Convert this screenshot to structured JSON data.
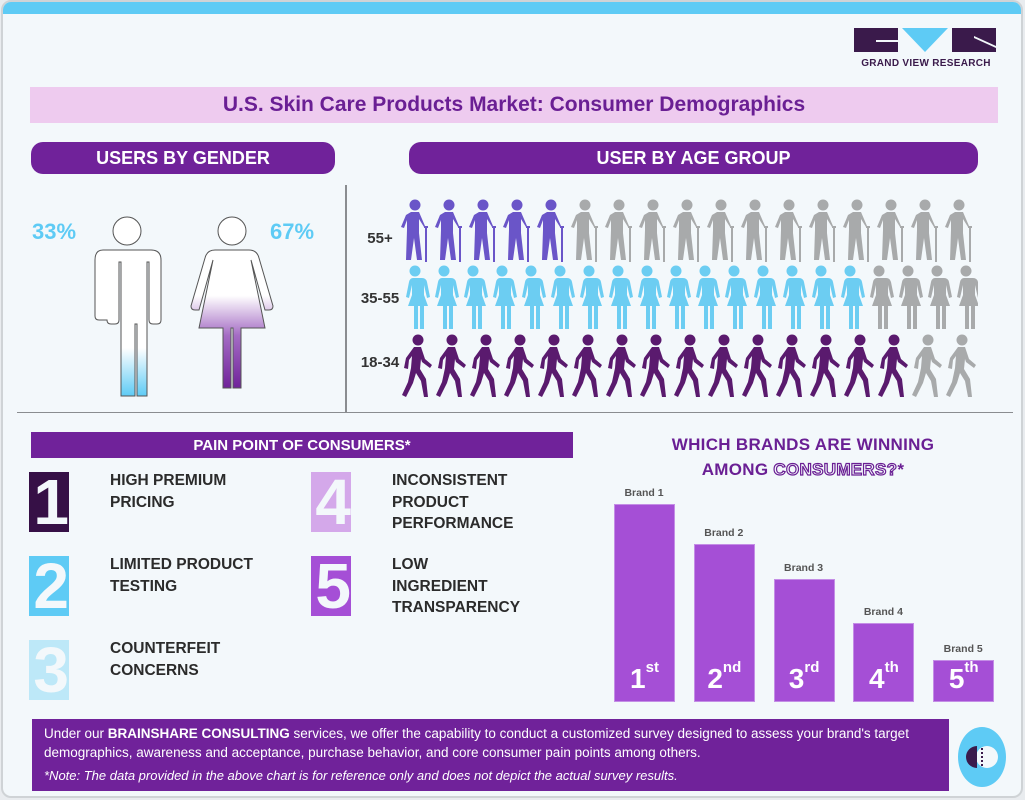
{
  "brand": {
    "logo_text": "GRAND VIEW RESEARCH",
    "colors": {
      "primary": "#70229a",
      "accent": "#5ecbf5",
      "dark": "#3a1a4b"
    }
  },
  "title": "U.S. Skin Care Products Market: Consumer Demographics",
  "gender": {
    "header": "USERS BY GENDER",
    "male_pct": "33%",
    "female_pct": "67%",
    "male_fill": 0.33,
    "female_fill": 0.67,
    "male_color": "#5ecbf5",
    "female_color": "#70229a"
  },
  "age": {
    "header": "USER BY AGE GROUP",
    "rows": [
      {
        "label": "55+",
        "icon": "elderly-person-with-cane-icon",
        "highlighted": 5,
        "total": 17,
        "color": "#6a55c8"
      },
      {
        "label": "35-55",
        "icon": "man-woman-pair-icon",
        "highlighted": 16,
        "total": 20,
        "color": "#6ccdf2"
      },
      {
        "label": "18-34",
        "icon": "walking-person-icon",
        "highlighted": 15,
        "total": 17,
        "color": "#5a1a6e"
      }
    ],
    "inactive_color": "#a8aaab"
  },
  "pain_points": {
    "header": "PAIN POINT OF CONSUMERS*",
    "items": [
      {
        "number": "1",
        "lines": [
          "HIGH PREMIUM",
          "PRICING"
        ],
        "color": "#361046"
      },
      {
        "number": "2",
        "lines": [
          "LIMITED PRODUCT",
          "TESTING"
        ],
        "color": "#5ecbf5"
      },
      {
        "number": "3",
        "lines": [
          "COUNTERFEIT",
          "CONCERNS"
        ],
        "color": "#bde8f8"
      },
      {
        "number": "4",
        "lines": [
          "INCONSISTENT",
          "PRODUCT",
          "PERFORMANCE"
        ],
        "color": "#d4a8ea"
      },
      {
        "number": "5",
        "lines": [
          "LOW",
          "INGREDIENT",
          "TRANSPARENCY"
        ],
        "color": "#a54fd6"
      }
    ]
  },
  "brands": {
    "title_line1": "WHICH BRANDS ARE WINNING",
    "title_line2_plain": "AMONG ",
    "title_line2_outline": "CONSUMERS?",
    "title_line2_end": "*"
  },
  "chart_data": {
    "type": "bar",
    "title": "WHICH BRANDS ARE WINNING AMONG CONSUMERS?*",
    "categories": [
      "Brand 1",
      "Brand 2",
      "Brand 3",
      "Brand 4",
      "Brand 5"
    ],
    "ranks": [
      {
        "num": "1",
        "suffix": "st"
      },
      {
        "num": "2",
        "suffix": "nd"
      },
      {
        "num": "3",
        "suffix": "rd"
      },
      {
        "num": "4",
        "suffix": "th"
      },
      {
        "num": "5",
        "suffix": "th"
      }
    ],
    "values": [
      100,
      80,
      62,
      40,
      21
    ],
    "color": "#a54fd6",
    "grid": false
  },
  "footer": {
    "pre": "Under our ",
    "bold": "BRAINSHARE CONSULTING",
    "post": " services, we offer the capability to conduct a customized survey designed to assess your brand's target demographics, awareness and acceptance, purchase behavior, and core consumer pain points among others.",
    "note": "*Note: The data provided in the above chart is for reference only and does not depict the actual survey results."
  }
}
